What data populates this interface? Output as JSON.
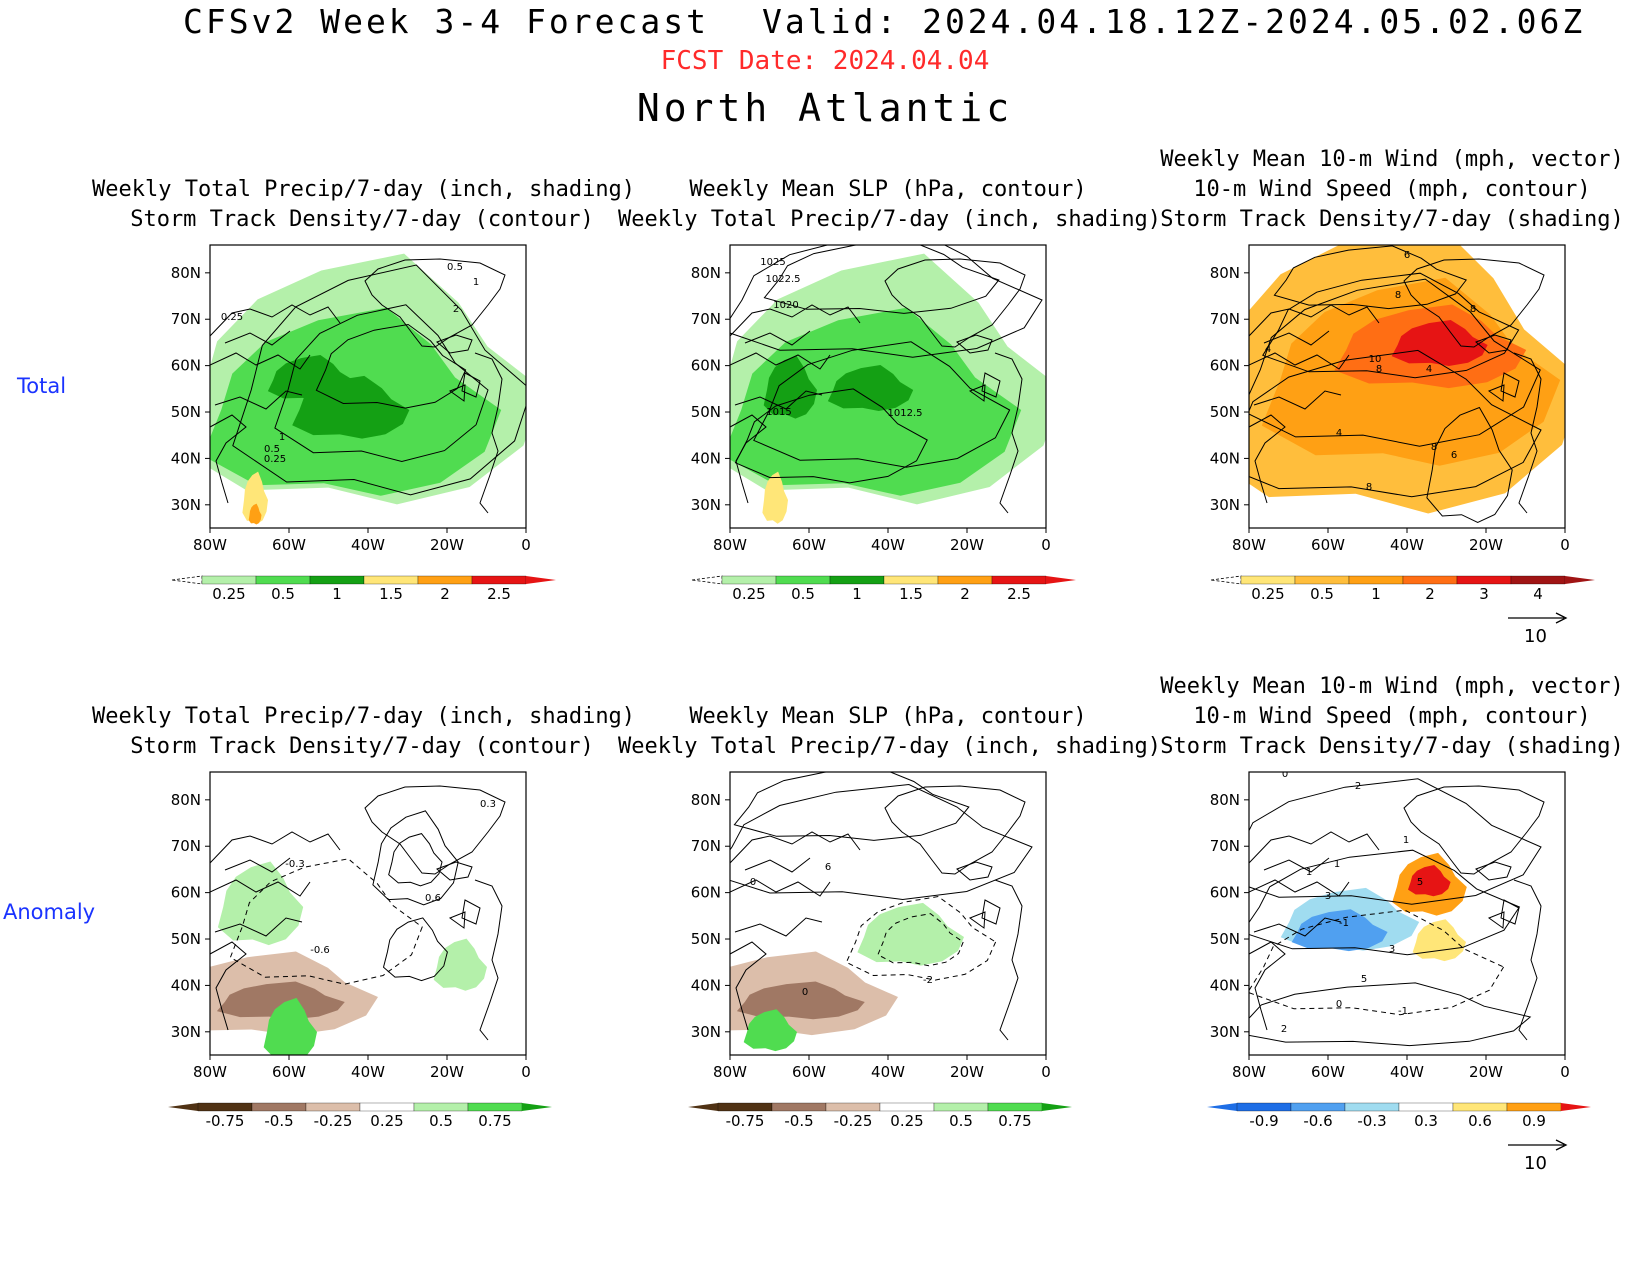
{
  "header": {
    "title_left": "CFSv2 Week 3-4 Forecast",
    "title_right": "Valid: 2024.04.18.12Z-2024.05.02.06Z",
    "fcst_date": "FCST Date: 2024.04.04",
    "region": "North Atlantic"
  },
  "rows": {
    "total": "Total",
    "anomaly": "Anomaly"
  },
  "axes": {
    "lat_labels": [
      "80N",
      "70N",
      "60N",
      "50N",
      "40N",
      "30N"
    ],
    "lon_labels": [
      "80W",
      "60W",
      "40W",
      "20W",
      "0"
    ]
  },
  "panels": {
    "p1": {
      "title1": "Weekly Total Precip/7-day (inch, shading)",
      "title2": "Storm Track Density/7-day (contour)",
      "contour_labels": [
        "0.5",
        "1",
        "2",
        "0.25",
        "1",
        "0.5",
        "0.25"
      ],
      "colorbar": [
        "0.25",
        "0.5",
        "1",
        "1.5",
        "2",
        "2.5"
      ]
    },
    "p2": {
      "title1": "Weekly Mean SLP (hPa, contour)",
      "title2": "Weekly Total Precip/7-day (inch, shading)",
      "contour_labels": [
        "1025",
        "1022.5",
        "1020",
        "1015",
        "1012.5"
      ],
      "colorbar": [
        "0.25",
        "0.5",
        "1",
        "1.5",
        "2",
        "2.5"
      ]
    },
    "p3": {
      "title0": "Weekly Mean 10-m Wind (mph, vector)",
      "title1": "10-m Wind Speed (mph, contour)",
      "title2": "Storm Track Density/7-day (shading)",
      "contour_labels": [
        "6",
        "8",
        "8",
        "4",
        "10",
        "8",
        "4",
        "4",
        "8",
        "6",
        "8"
      ],
      "colorbar": [
        "0.25",
        "0.5",
        "1",
        "2",
        "3",
        "4"
      ],
      "vector_ref": "10"
    },
    "p4": {
      "title1": "Weekly Total Precip/7-day (inch, shading)",
      "title2": "Storm Track Density/7-day (contour)",
      "contour_labels": [
        "0.3",
        "-0.3",
        "0.6",
        "-0.6"
      ],
      "colorbar": [
        "-0.75",
        "-0.5",
        "-0.25",
        "0.25",
        "0.5",
        "0.75"
      ]
    },
    "p5": {
      "title1": "Weekly Mean SLP (hPa, contour)",
      "title2": "Weekly Total Precip/7-day (inch, shading)",
      "contour_labels": [
        "6",
        "0",
        "-2",
        "0"
      ],
      "colorbar": [
        "-0.75",
        "-0.5",
        "-0.25",
        "0.25",
        "0.5",
        "0.75"
      ]
    },
    "p6": {
      "title0": "Weekly Mean 10-m Wind (mph, vector)",
      "title1": "10-m Wind Speed (mph, contour)",
      "title2": "Storm Track Density/7-day (shading)",
      "contour_labels": [
        "0",
        "2",
        "1",
        "1",
        "1",
        "3",
        "5",
        "-1",
        "3",
        "5",
        "0",
        "-1",
        "2"
      ],
      "colorbar": [
        "-0.9",
        "-0.6",
        "-0.3",
        "0.3",
        "0.6",
        "0.9"
      ],
      "vector_ref": "10"
    }
  },
  "colors": {
    "precip": [
      "#b4f0aa",
      "#50dc50",
      "#14a014",
      "#ffe678",
      "#ffa014",
      "#e61414"
    ],
    "precip_anom": [
      "#503214",
      "#a07864",
      "#dcbeaa",
      "#b4f0aa",
      "#50dc50",
      "#14a014"
    ],
    "storm_total": [
      "#ffe678",
      "#ffbe3c",
      "#ffa014",
      "#ff6e14",
      "#e61414",
      "#a01414"
    ],
    "storm_anom": [
      "#1e6ee6",
      "#50a0f0",
      "#a0dcf0",
      "#ffe678",
      "#ffa014",
      "#e61414"
    ],
    "contour": "#000000",
    "vector": "#6a6ae6",
    "row_label": "#1a33ff",
    "fcst_date": "#ff2a2a"
  }
}
